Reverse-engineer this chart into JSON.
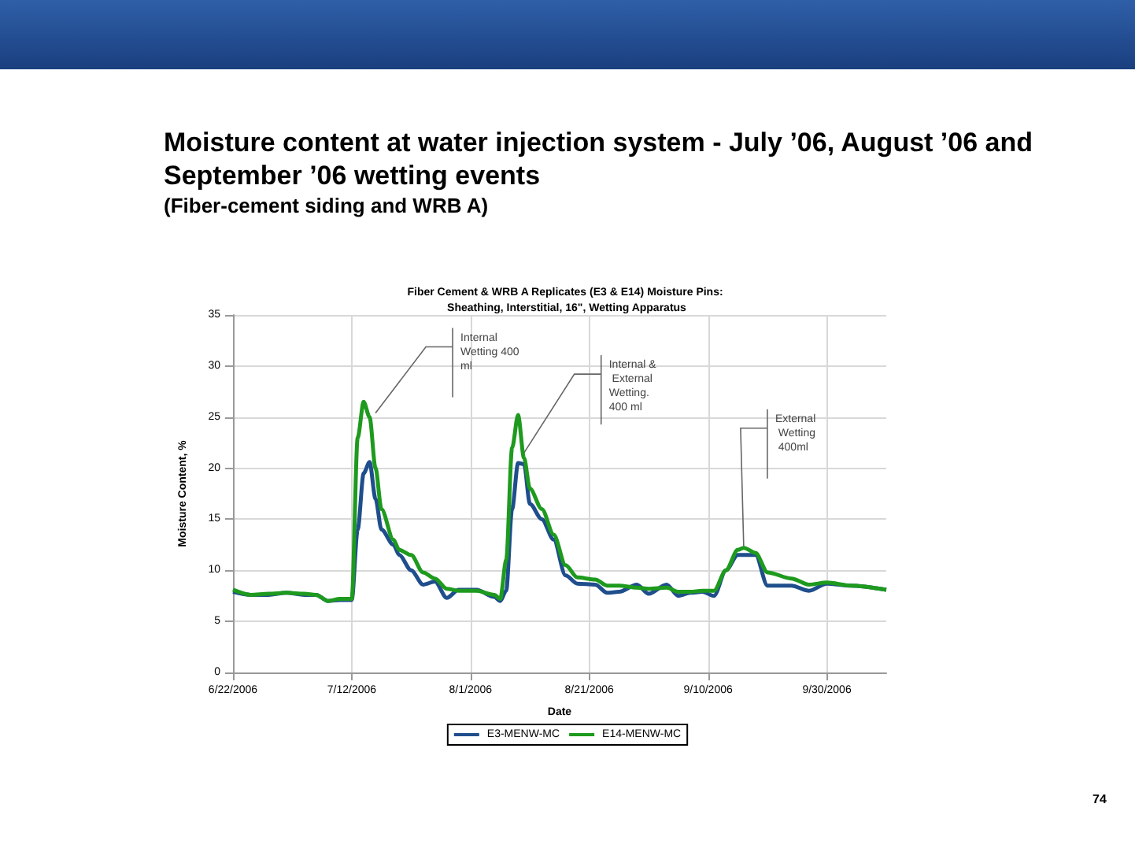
{
  "chart_data": {
    "type": "line",
    "title": "Moisture content at water injection system - July ’06, August ’06 and September ’06 wetting events",
    "subtitle": "(Fiber-cement siding and WRB A)",
    "xlabel": "Date",
    "ylabel": "Moisture Content, %",
    "x": [
      "2006-06-22",
      "2006-06-25",
      "2006-06-28",
      "2006-07-01",
      "2006-07-04",
      "2006-07-06",
      "2006-07-08",
      "2006-07-10",
      "2006-07-12",
      "2006-07-13",
      "2006-07-14",
      "2006-07-15",
      "2006-07-16",
      "2006-07-17",
      "2006-07-19",
      "2006-07-20",
      "2006-07-22",
      "2006-07-24",
      "2006-07-26",
      "2006-07-28",
      "2006-07-30",
      "2006-08-02",
      "2006-08-05",
      "2006-08-06",
      "2006-08-07",
      "2006-08-08",
      "2006-08-09",
      "2006-08-10",
      "2006-08-11",
      "2006-08-13",
      "2006-08-15",
      "2006-08-17",
      "2006-08-19",
      "2006-08-22",
      "2006-08-24",
      "2006-08-26",
      "2006-08-29",
      "2006-08-31",
      "2006-09-03",
      "2006-09-05",
      "2006-09-07",
      "2006-09-09",
      "2006-09-11",
      "2006-09-13",
      "2006-09-15",
      "2006-09-16",
      "2006-09-18",
      "2006-09-20",
      "2006-09-24",
      "2006-09-27",
      "2006-09-30",
      "2006-10-04",
      "2006-10-10"
    ],
    "series": [
      {
        "name": "E3-MENW-MC",
        "color": "#1f4e8c",
        "values": [
          7.9,
          7.6,
          7.6,
          7.8,
          7.6,
          7.6,
          7.0,
          7.1,
          7.1,
          14,
          19.5,
          20.6,
          17,
          14,
          12.5,
          11.5,
          10.0,
          8.6,
          8.9,
          7.3,
          8.1,
          8.1,
          7.4,
          7.0,
          8.0,
          16,
          20.5,
          20.4,
          16.5,
          15,
          13,
          9.5,
          8.7,
          8.6,
          7.8,
          7.9,
          8.6,
          7.7,
          8.6,
          7.5,
          7.8,
          7.9,
          7.5,
          10,
          11.5,
          11.5,
          11.5,
          8.5,
          8.5,
          8.0,
          8.7,
          8.5,
          8.1
        ]
      },
      {
        "name": "E14-MENW-MC",
        "color": "#1e9a1e",
        "values": [
          8.1,
          7.6,
          7.7,
          7.8,
          7.7,
          7.6,
          7.0,
          7.2,
          7.2,
          23,
          26.5,
          25,
          20,
          16,
          13,
          12,
          11.5,
          9.8,
          9.2,
          8.2,
          8.0,
          8.0,
          7.6,
          7.2,
          11,
          22,
          25.2,
          21,
          18,
          16,
          13.5,
          10.5,
          9.3,
          9.1,
          8.5,
          8.5,
          8.3,
          8.2,
          8.3,
          7.9,
          7.9,
          8.0,
          8.0,
          10,
          12,
          12.2,
          11.7,
          9.8,
          9.2,
          8.6,
          8.8,
          8.5,
          8.1
        ]
      }
    ],
    "xlim": [
      "2006-06-22",
      "2006-10-10"
    ],
    "xticks": [
      {
        "value": "2006-06-22",
        "label": "6/22/2006"
      },
      {
        "value": "2006-07-12",
        "label": "7/12/2006"
      },
      {
        "value": "2006-08-01",
        "label": "8/1/2006"
      },
      {
        "value": "2006-08-21",
        "label": "8/21/2006"
      },
      {
        "value": "2006-09-10",
        "label": "9/10/2006"
      },
      {
        "value": "2006-09-30",
        "label": "9/30/2006"
      }
    ],
    "ylim": [
      0,
      35
    ],
    "yticks": [
      0,
      5,
      10,
      15,
      20,
      25,
      30,
      35
    ],
    "grid": true,
    "legend": "bottom",
    "marker": "none",
    "line_style": "solid",
    "annotations": [
      "Fiber Cement & WRB A Replicates (E3 & E14) Moisture Pins: Sheathing, Interstitial, 16\", Wetting Apparatus",
      {
        "text": "Internal Wetting 400 ml",
        "x": "2006-07-16",
        "y": 25.4
      },
      {
        "text": "Internal & External Wetting. 400 ml",
        "x": "2006-08-10",
        "y": 21.5
      },
      {
        "text": "External Wetting 400ml",
        "x": "2006-09-16",
        "y": 12.2
      },
      "74"
    ]
  }
}
